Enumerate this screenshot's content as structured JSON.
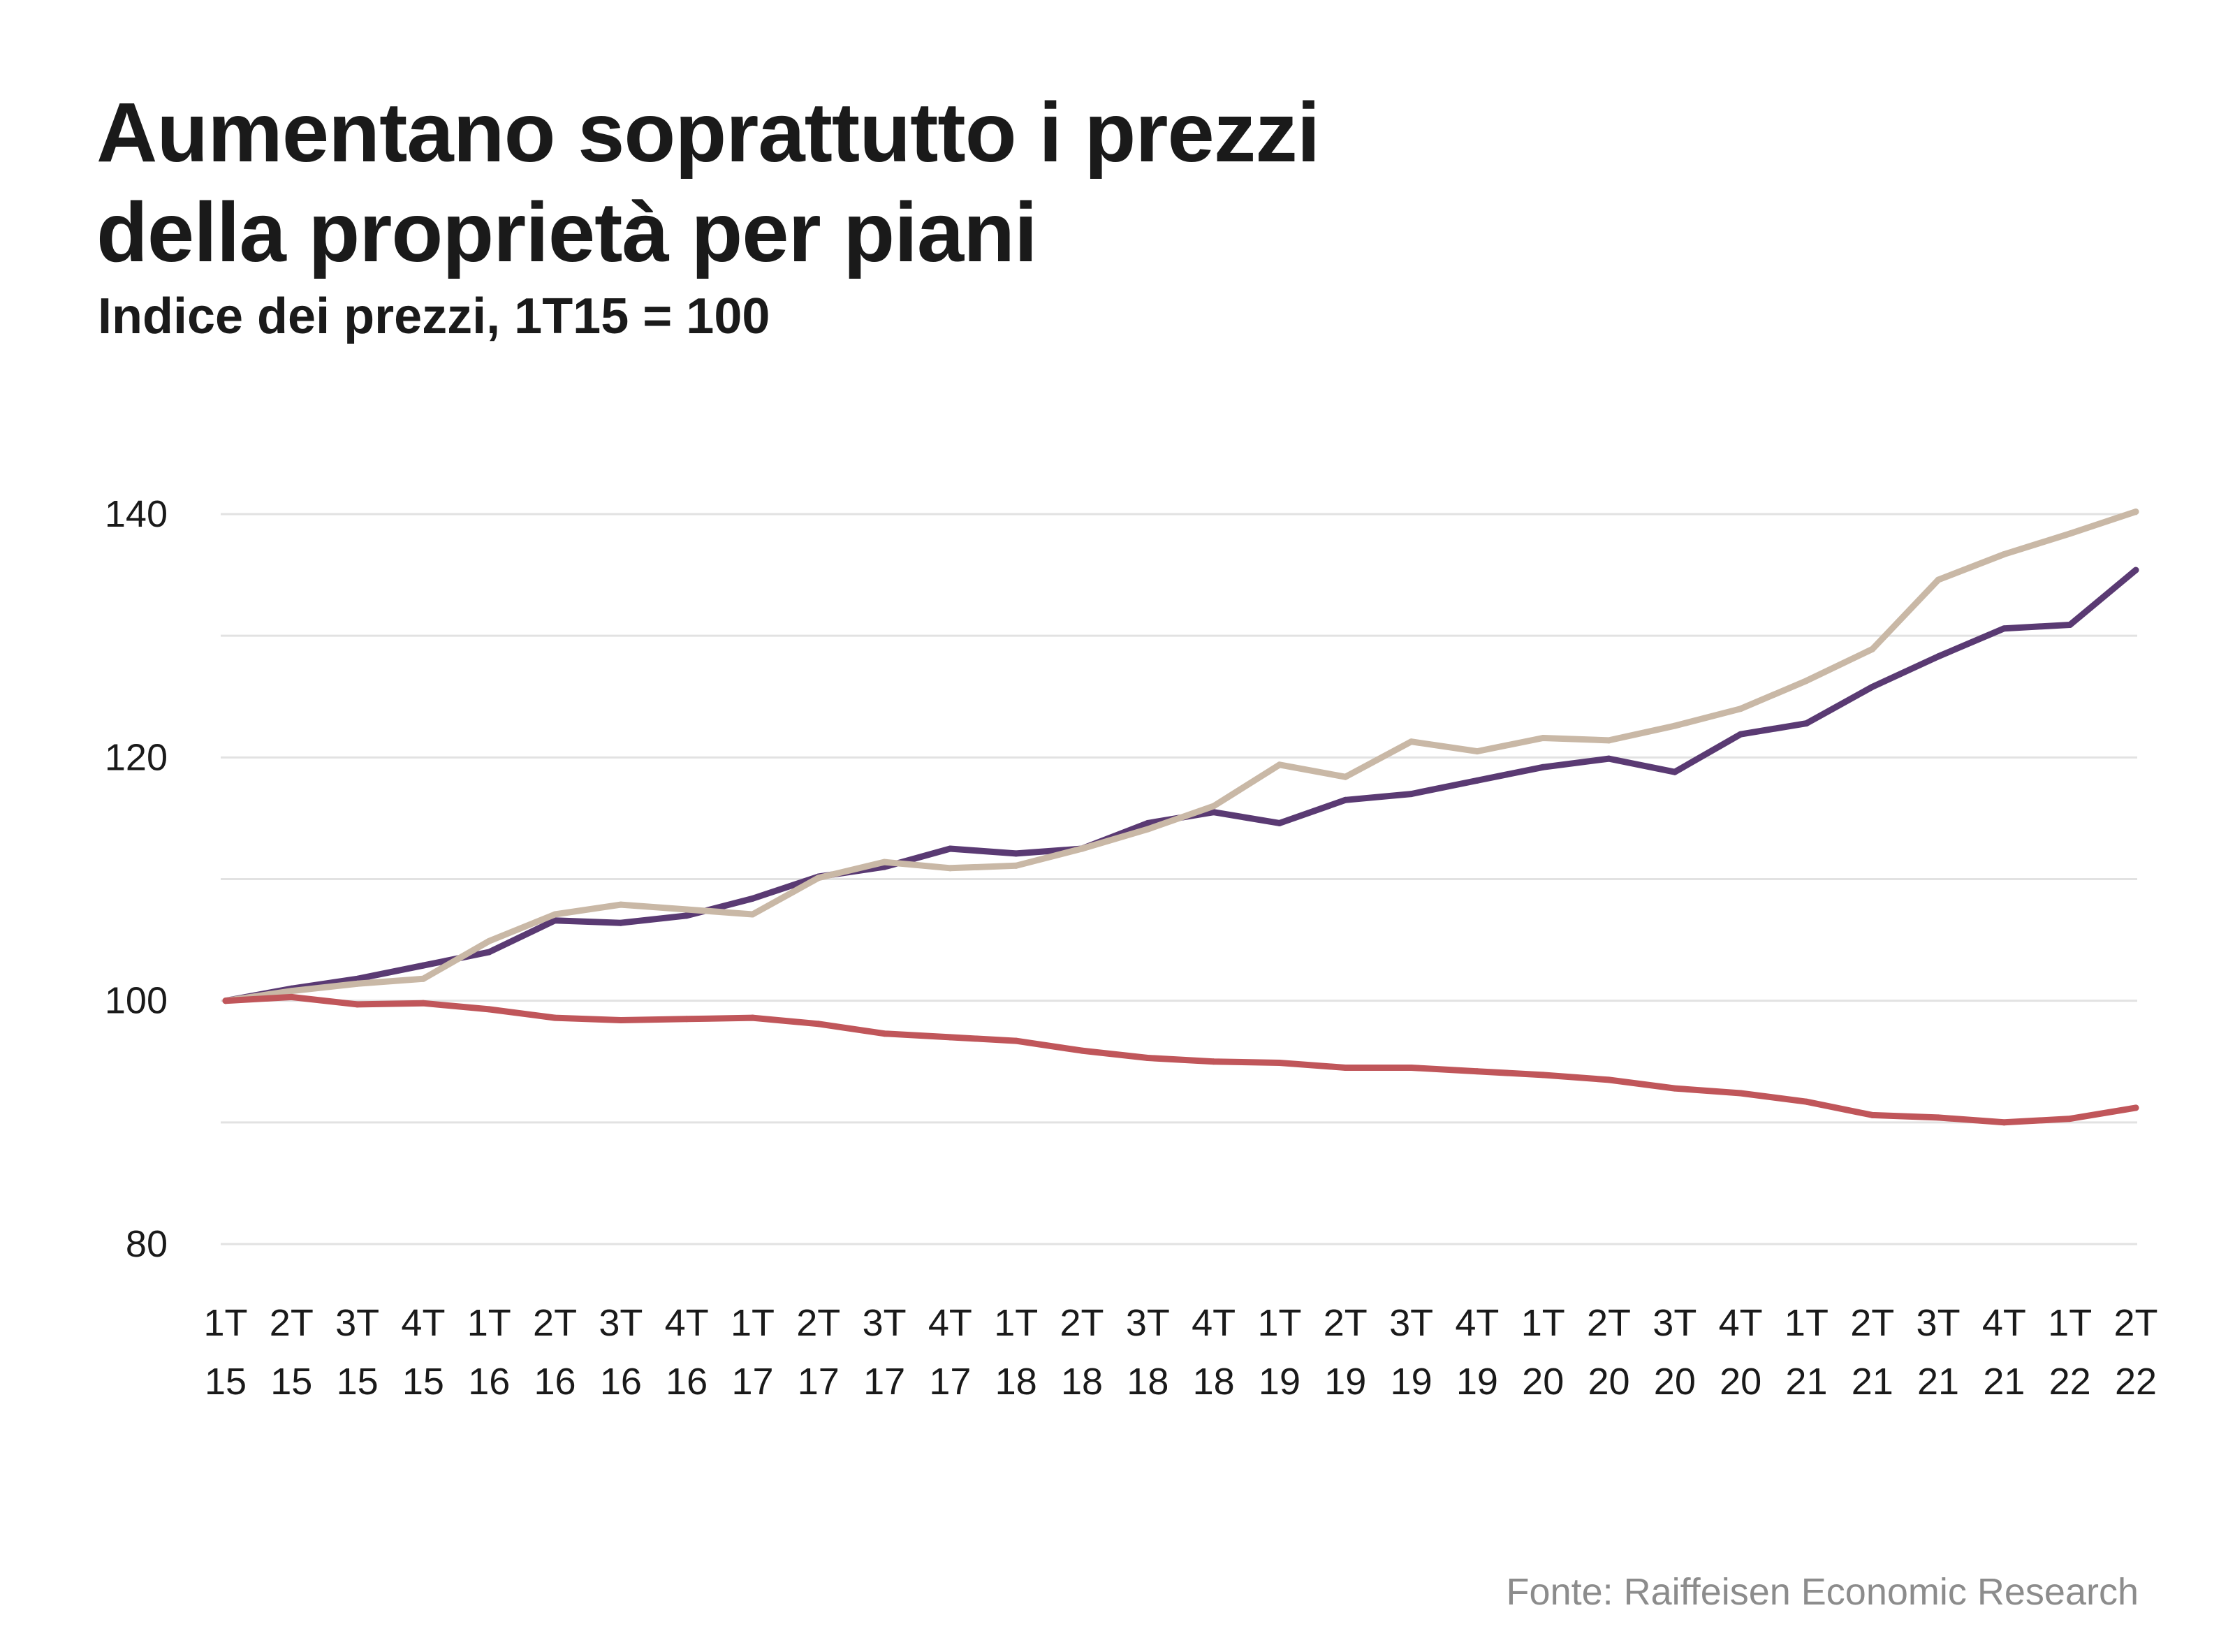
{
  "header": {
    "title_lines": [
      "Aumentano soprattutto i prezzi",
      "della proprietà per piani"
    ],
    "subtitle": "Indice dei prezzi, 1T15 = 100"
  },
  "footer": {
    "source": "Fonte: Raiffeisen Economic Research"
  },
  "colors": {
    "purple": "#5a3a73",
    "beige": "#c9b8a6",
    "red": "#c0565a",
    "grid": "#e2e2e2"
  },
  "chart_data": {
    "type": "line",
    "title": "Aumentano soprattutto i prezzi della proprietà per piani",
    "subtitle": "Indice dei prezzi, 1T15 = 100",
    "xlabel": "",
    "ylabel": "",
    "ylim": [
      80,
      140
    ],
    "yticks": [
      80,
      100,
      120,
      140
    ],
    "grid": true,
    "categories": [
      [
        "1T",
        "15"
      ],
      [
        "2T",
        "15"
      ],
      [
        "3T",
        "15"
      ],
      [
        "4T",
        "15"
      ],
      [
        "1T",
        "16"
      ],
      [
        "2T",
        "16"
      ],
      [
        "3T",
        "16"
      ],
      [
        "4T",
        "16"
      ],
      [
        "1T",
        "17"
      ],
      [
        "2T",
        "17"
      ],
      [
        "3T",
        "17"
      ],
      [
        "4T",
        "17"
      ],
      [
        "1T",
        "18"
      ],
      [
        "2T",
        "18"
      ],
      [
        "3T",
        "18"
      ],
      [
        "4T",
        "18"
      ],
      [
        "1T",
        "19"
      ],
      [
        "2T",
        "19"
      ],
      [
        "3T",
        "19"
      ],
      [
        "4T",
        "19"
      ],
      [
        "1T",
        "20"
      ],
      [
        "2T",
        "20"
      ],
      [
        "3T",
        "20"
      ],
      [
        "4T",
        "20"
      ],
      [
        "1T",
        "21"
      ],
      [
        "2T",
        "21"
      ],
      [
        "3T",
        "21"
      ],
      [
        "4T",
        "21"
      ],
      [
        "1T",
        "22"
      ],
      [
        "2T",
        "22"
      ]
    ],
    "series": [
      {
        "color": "purple",
        "values": [
          100,
          101,
          101.8,
          102.9,
          104,
          106.6,
          106.4,
          107,
          108.4,
          110.2,
          111,
          112.5,
          112.1,
          112.5,
          114.6,
          115.5,
          114.6,
          116.5,
          117,
          118.1,
          119.2,
          119.9,
          118.8,
          121.9,
          122.8,
          125.8,
          128.3,
          130.6,
          130.9,
          135.4
        ]
      },
      {
        "color": "beige",
        "values": [
          100,
          100.8,
          101.4,
          101.8,
          104.9,
          107.1,
          107.9,
          107.5,
          107.1,
          110.1,
          111.4,
          110.9,
          111.1,
          112.5,
          114.1,
          116,
          119.4,
          118.4,
          121.3,
          120.5,
          121.6,
          121.4,
          122.6,
          124,
          126.3,
          128.9,
          134.6,
          136.7,
          138.4,
          140.2
        ]
      },
      {
        "color": "red",
        "values": [
          100,
          100.3,
          99.7,
          99.8,
          99.3,
          98.6,
          98.4,
          98.5,
          98.6,
          98.1,
          97.3,
          97,
          96.7,
          95.9,
          95.3,
          95,
          94.9,
          94.5,
          94.5,
          94.2,
          93.9,
          93.5,
          92.8,
          92.4,
          91.7,
          90.6,
          90.4,
          90,
          90.3,
          91.2
        ]
      }
    ]
  }
}
